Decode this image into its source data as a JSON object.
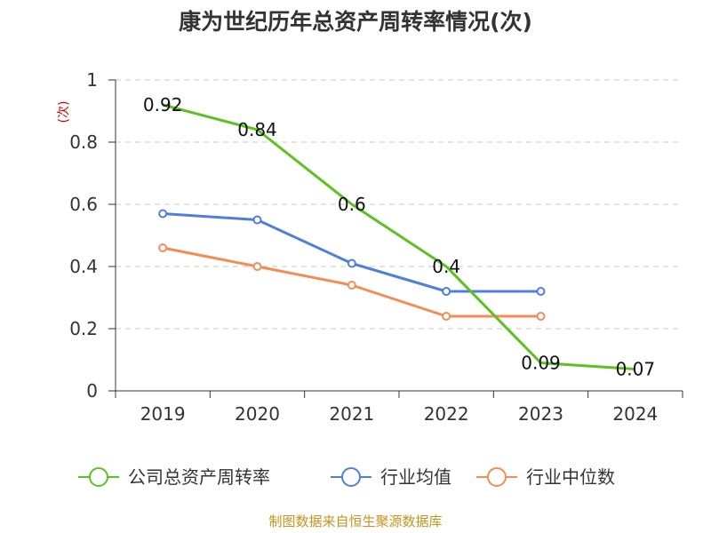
{
  "chart_data": {
    "type": "line",
    "title": "康为世纪历年总资产周转率情况(次)",
    "unit": "(次)",
    "source": "制图数据来自恒生聚源数据库",
    "categories": [
      "2019",
      "2020",
      "2021",
      "2022",
      "2023",
      "2024"
    ],
    "ylim": [
      0,
      1
    ],
    "yticks": [
      "0",
      "0.2",
      "0.4",
      "0.6",
      "0.8",
      "1"
    ],
    "grid": true,
    "legend_position": "bottom",
    "series": [
      {
        "name": "公司总资产周转率",
        "color": "#5dc121",
        "values": [
          0.92,
          0.84,
          0.6,
          0.4,
          0.09,
          0.07
        ],
        "labels": [
          "0.92",
          "0.84",
          "0.6",
          "0.4",
          "0.09",
          "0.07"
        ]
      },
      {
        "name": "行业均值",
        "color": "#4f7edc",
        "values": [
          0.57,
          0.55,
          0.41,
          0.32,
          0.32,
          null
        ]
      },
      {
        "name": "行业中位数",
        "color": "#f68b57",
        "values": [
          0.46,
          0.4,
          0.34,
          0.24,
          0.24,
          null
        ]
      }
    ]
  }
}
